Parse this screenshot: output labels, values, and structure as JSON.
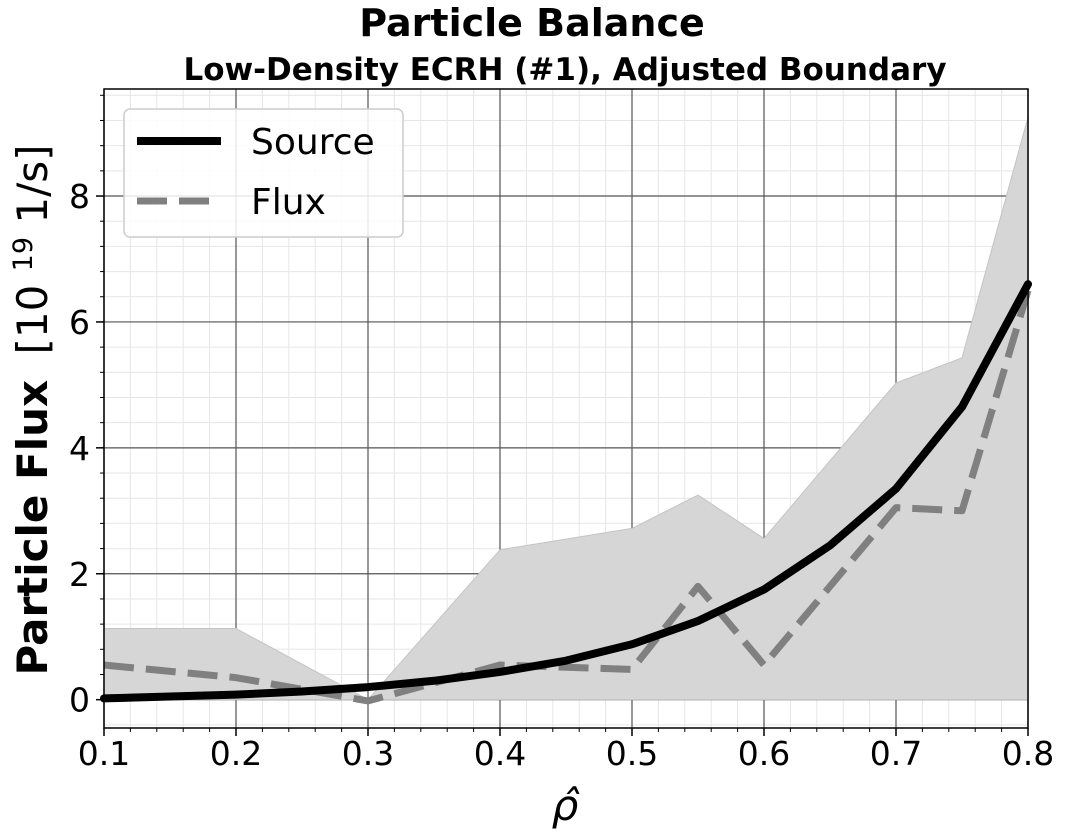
{
  "chart_data": {
    "type": "line",
    "title": "Particle Balance",
    "subtitle": "Low-Density ECRH (#1), Adjusted Boundary",
    "xlabel": "ρ̂",
    "ylabel": {
      "bold": "Particle Flux",
      "unit_prefix": "[10",
      "unit_exp": "19",
      "unit_suffix": " 1/s]"
    },
    "xlim": [
      0.1,
      0.8
    ],
    "ylim": [
      -0.45,
      9.7
    ],
    "x_ticks": [
      0.1,
      0.2,
      0.3,
      0.4,
      0.5,
      0.6,
      0.7,
      0.8
    ],
    "x_tick_labels": [
      "0.1",
      "0.2",
      "0.3",
      "0.4",
      "0.5",
      "0.6",
      "0.7",
      "0.8"
    ],
    "y_ticks": [
      0,
      2,
      4,
      6,
      8
    ],
    "y_tick_labels": [
      "0",
      "2",
      "4",
      "6",
      "8"
    ],
    "grid": true,
    "legend": {
      "position": "top-left"
    },
    "series": [
      {
        "name": "Source",
        "style": "solid",
        "color": "#000000",
        "x": [
          0.1,
          0.15,
          0.2,
          0.25,
          0.3,
          0.35,
          0.4,
          0.45,
          0.5,
          0.55,
          0.6,
          0.65,
          0.7,
          0.75,
          0.8
        ],
        "y": [
          0.02,
          0.05,
          0.08,
          0.13,
          0.2,
          0.3,
          0.44,
          0.62,
          0.88,
          1.25,
          1.75,
          2.45,
          3.35,
          4.65,
          6.6
        ]
      },
      {
        "name": "Flux",
        "style": "dashed",
        "color": "#808080",
        "x": [
          0.1,
          0.2,
          0.3,
          0.4,
          0.5,
          0.55,
          0.6,
          0.7,
          0.75,
          0.8
        ],
        "y": [
          0.55,
          0.35,
          -0.02,
          0.55,
          0.48,
          1.8,
          0.55,
          3.05,
          3.0,
          6.5
        ]
      }
    ],
    "band": {
      "color": "#d6d6d6",
      "x": [
        0.1,
        0.2,
        0.3,
        0.4,
        0.5,
        0.55,
        0.6,
        0.7,
        0.75,
        0.8
      ],
      "upper": [
        1.13,
        1.13,
        0.0,
        2.38,
        2.72,
        3.25,
        2.56,
        5.03,
        5.43,
        9.25
      ],
      "lower": [
        0.0,
        0.0,
        0.0,
        0.0,
        0.0,
        0.0,
        0.0,
        0.0,
        0.0,
        0.0
      ]
    }
  }
}
